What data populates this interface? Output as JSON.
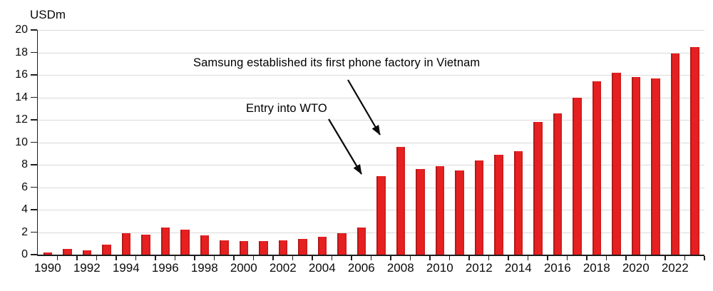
{
  "chart_data": {
    "type": "bar",
    "title": "",
    "unit_label": "USDm",
    "xlabel": "",
    "ylabel": "USDm",
    "ylim": [
      0,
      20
    ],
    "ytick_step": 2,
    "grid": "horizontal",
    "legend": "none",
    "categories": [
      1990,
      1991,
      1992,
      1993,
      1994,
      1995,
      1996,
      1997,
      1998,
      1999,
      2000,
      2001,
      2002,
      2003,
      2004,
      2005,
      2006,
      2007,
      2008,
      2009,
      2010,
      2011,
      2012,
      2013,
      2014,
      2015,
      2016,
      2017,
      2018,
      2019,
      2020,
      2021,
      2022,
      2023
    ],
    "values": [
      0.2,
      0.5,
      0.4,
      0.9,
      1.9,
      1.8,
      2.4,
      2.2,
      1.7,
      1.3,
      1.2,
      1.2,
      1.3,
      1.4,
      1.6,
      1.9,
      2.4,
      7.0,
      9.6,
      7.6,
      7.9,
      7.5,
      8.4,
      8.9,
      9.2,
      11.8,
      12.6,
      14.0,
      15.4,
      16.2,
      15.8,
      15.7,
      17.9,
      18.5
    ],
    "x_tick_labels": [
      "1990",
      "1992",
      "1994",
      "1996",
      "1998",
      "2000",
      "2002",
      "2004",
      "2006",
      "2008",
      "2010",
      "2012",
      "2014",
      "2016",
      "2018",
      "2020",
      "2022"
    ],
    "annotations": [
      {
        "text": "Samsung established its first phone factory in Vietnam"
      },
      {
        "text": "Entry into WTO"
      }
    ],
    "colors": {
      "bar": "#e62020",
      "gridline": "#d9d9d9",
      "axis": "#1d1d1d",
      "text": "#000000",
      "background": "#ffffff"
    }
  }
}
